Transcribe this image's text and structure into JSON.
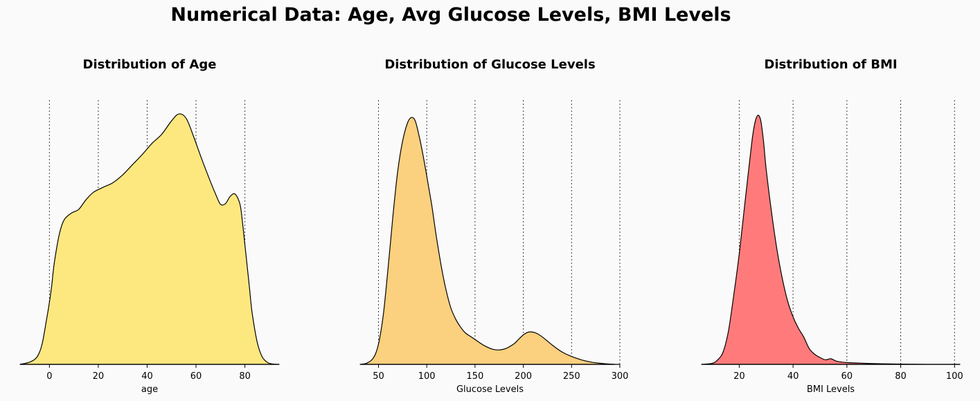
{
  "figure": {
    "suptitle": "Numerical Data: Age, Avg Glucose Levels, BMI Levels"
  },
  "chart_data": [
    {
      "type": "area",
      "title": "Distribution of Age",
      "xlabel": "age",
      "ylabel": "",
      "fill_color": "#fde880",
      "grid": "vertical dotted",
      "xlim": [
        -12,
        94
      ],
      "xticks": [
        0,
        20,
        40,
        60,
        80
      ],
      "tick_labels": [
        "0",
        "20",
        "40",
        "60",
        "80"
      ],
      "x": [
        -12,
        -8,
        -5,
        -3,
        -1,
        0,
        1,
        2,
        4,
        6,
        9,
        12,
        15,
        18,
        22,
        26,
        30,
        34,
        38,
        42,
        46,
        50,
        53,
        56,
        59,
        62,
        65,
        68,
        70,
        72,
        74,
        76,
        78,
        79,
        80,
        81,
        82,
        83,
        85,
        87,
        89,
        91,
        94
      ],
      "y": [
        0.0,
        0.009,
        0.03,
        0.08,
        0.186,
        0.244,
        0.315,
        0.4,
        0.511,
        0.569,
        0.596,
        0.611,
        0.649,
        0.678,
        0.698,
        0.716,
        0.747,
        0.787,
        0.827,
        0.871,
        0.907,
        0.96,
        0.987,
        0.969,
        0.898,
        0.818,
        0.742,
        0.671,
        0.631,
        0.633,
        0.662,
        0.671,
        0.631,
        0.56,
        0.471,
        0.382,
        0.289,
        0.2,
        0.089,
        0.031,
        0.009,
        0.002,
        0.0
      ]
    },
    {
      "type": "area",
      "title": "Distribution of Glucose Levels",
      "xlabel": "Glucose Levels",
      "ylabel": "",
      "fill_color": "#fbd07e",
      "grid": "vertical dotted",
      "xlim": [
        31,
        300
      ],
      "xticks": [
        50,
        100,
        150,
        200,
        250,
        300
      ],
      "tick_labels": [
        "50",
        "100",
        "150",
        "200",
        "250",
        "300"
      ],
      "x": [
        31,
        38,
        45,
        50,
        55,
        60,
        65,
        70,
        75,
        80,
        84,
        88,
        92,
        96,
        100,
        105,
        110,
        115,
        120,
        125,
        130,
        135,
        140,
        145,
        150,
        160,
        170,
        180,
        190,
        195,
        200,
        205,
        210,
        215,
        220,
        230,
        240,
        250,
        260,
        270,
        280,
        290,
        295
      ],
      "y": [
        0.0,
        0.005,
        0.027,
        0.08,
        0.196,
        0.382,
        0.587,
        0.764,
        0.88,
        0.951,
        0.973,
        0.96,
        0.902,
        0.827,
        0.742,
        0.631,
        0.502,
        0.387,
        0.293,
        0.222,
        0.178,
        0.147,
        0.124,
        0.111,
        0.098,
        0.073,
        0.058,
        0.06,
        0.08,
        0.098,
        0.116,
        0.127,
        0.127,
        0.12,
        0.107,
        0.076,
        0.049,
        0.031,
        0.018,
        0.009,
        0.004,
        0.001,
        0.0
      ]
    },
    {
      "type": "area",
      "title": "Distribution of BMI",
      "xlabel": "BMI Levels",
      "ylabel": "",
      "fill_color": "#ff7b7b",
      "grid": "vertical dotted",
      "xlim": [
        6,
        102
      ],
      "xticks": [
        20,
        40,
        60,
        80,
        100
      ],
      "tick_labels": [
        "20",
        "40",
        "60",
        "80",
        "100"
      ],
      "x": [
        6,
        10,
        12,
        14,
        16,
        18,
        20,
        22,
        24,
        25,
        26,
        27,
        28,
        29,
        30,
        32,
        34,
        36,
        38,
        40,
        42,
        44,
        46,
        48,
        50,
        52,
        54,
        56,
        58,
        60,
        65,
        70,
        80,
        90,
        102
      ],
      "y": [
        0.0,
        0.004,
        0.018,
        0.049,
        0.133,
        0.276,
        0.436,
        0.627,
        0.813,
        0.902,
        0.96,
        0.982,
        0.96,
        0.88,
        0.769,
        0.6,
        0.453,
        0.338,
        0.249,
        0.187,
        0.142,
        0.107,
        0.062,
        0.04,
        0.027,
        0.018,
        0.022,
        0.013,
        0.009,
        0.007,
        0.005,
        0.003,
        0.001,
        0.0,
        0.0
      ]
    }
  ]
}
